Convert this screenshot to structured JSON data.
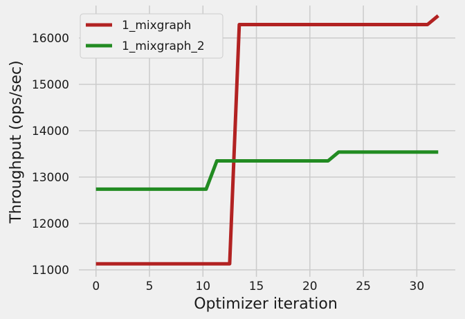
{
  "chart_data": {
    "type": "line",
    "title": "",
    "xlabel": "Optimizer iteration",
    "ylabel": "Throughput (ops/sec)",
    "xlim": [
      -1.6,
      33.6
    ],
    "ylim": [
      10850,
      16700
    ],
    "xticks": [
      0,
      5,
      10,
      15,
      20,
      25,
      30
    ],
    "yticks": [
      11000,
      12000,
      13000,
      14000,
      15000,
      16000
    ],
    "grid": true,
    "legend_position": "top-left",
    "series": [
      {
        "name": "1_mixgraph",
        "color": "#b22222",
        "x": [
          0,
          12.5,
          13.4,
          31,
          32
        ],
        "y": [
          11130,
          11130,
          16290,
          16290,
          16480
        ]
      },
      {
        "name": "1_mixgraph_2",
        "color": "#228b22",
        "x": [
          0,
          10.3,
          11.3,
          21.7,
          22.7,
          32
        ],
        "y": [
          12740,
          12740,
          13350,
          13350,
          13540,
          13540
        ]
      }
    ]
  }
}
